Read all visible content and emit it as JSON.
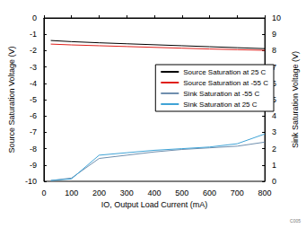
{
  "chart_data": {
    "type": "line",
    "x_label": "IO, Output Load Current (mA)",
    "y_label": "Source Saturation Voltage (V)",
    "y2_label": "Sink Saturation Voltage (V)",
    "annotations": [
      "C005"
    ],
    "x": [
      25,
      100,
      200,
      300,
      400,
      500,
      600,
      700,
      800
    ],
    "series": [
      {
        "name": "Source Saturation at 25 C",
        "color": "#000000",
        "values": [
          -1.38,
          -1.45,
          -1.52,
          -1.58,
          -1.64,
          -1.7,
          -1.76,
          -1.82,
          -1.88
        ]
      },
      {
        "name": "Source Saturation at -55 C",
        "color": "#e0201b",
        "values": [
          -1.6,
          -1.65,
          -1.7,
          -1.75,
          -1.8,
          -1.85,
          -1.9,
          -1.94,
          -1.98
        ]
      },
      {
        "name": "Sink Saturation at -55 C",
        "color": "#6f8fae",
        "axis": "y2",
        "values": [
          0.05,
          0.2,
          1.4,
          1.6,
          1.8,
          1.95,
          2.05,
          2.15,
          2.4
        ]
      },
      {
        "name": "Sink Saturation at 25 C",
        "color": "#3fa3d6",
        "axis": "y2",
        "values": [
          0.05,
          0.15,
          1.6,
          1.75,
          1.9,
          2.0,
          2.1,
          2.3,
          2.9
        ]
      }
    ],
    "xlim": [
      0,
      800
    ],
    "xticks": [
      0,
      100,
      200,
      300,
      400,
      500,
      600,
      700,
      800
    ],
    "ylim": [
      -10,
      0
    ],
    "yticks": [
      -10,
      -9,
      -8,
      -7,
      -6,
      -5,
      -4,
      -3,
      -2,
      -1,
      0
    ],
    "y2lim": [
      0,
      10
    ],
    "y2ticks": [
      0,
      1,
      2,
      3,
      4,
      5,
      6,
      7,
      8,
      9,
      10
    ],
    "grid": false,
    "legend": "right"
  }
}
